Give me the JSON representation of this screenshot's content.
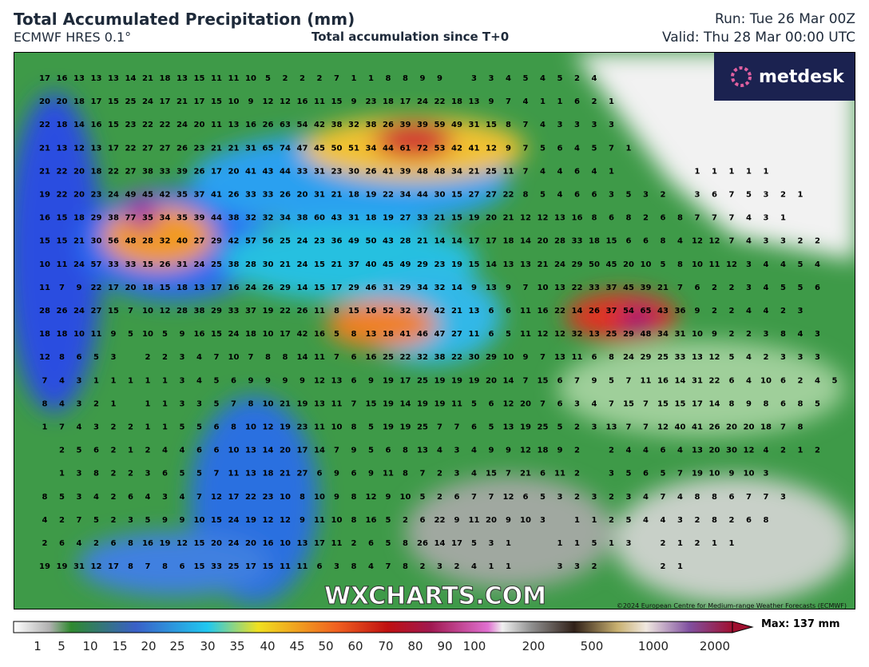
{
  "header": {
    "title": "Total Accumulated Precipitation (mm)",
    "model": "ECMWF HRES 0.1°",
    "subtitle": "Total accumulation since T+0",
    "run": "Run: Tue 26 Mar 00Z",
    "valid": "Valid: Thu 28 Mar 00:00 UTC"
  },
  "logo": "metdesk",
  "watermark": "WXCHARTS.COM",
  "copyright": "©2024 European Centre for Medium-range Weather Forecasts (ECMWF)",
  "grid": [
    [
      17,
      16,
      13,
      13,
      13,
      14,
      21,
      18,
      13,
      15,
      11,
      11,
      10,
      5,
      2,
      2,
      2,
      7,
      1,
      1,
      8,
      8,
      9,
      9,
      null,
      3,
      3,
      4,
      5,
      4,
      5,
      2,
      4
    ],
    [
      20,
      20,
      18,
      17,
      15,
      25,
      24,
      17,
      21,
      17,
      15,
      10,
      9,
      12,
      12,
      16,
      11,
      15,
      9,
      23,
      18,
      17,
      24,
      22,
      18,
      13,
      9,
      7,
      4,
      1,
      1,
      6,
      2,
      1
    ],
    [
      22,
      18,
      14,
      16,
      15,
      23,
      22,
      22,
      24,
      20,
      11,
      13,
      16,
      26,
      63,
      54,
      42,
      38,
      32,
      38,
      26,
      39,
      39,
      59,
      49,
      31,
      15,
      8,
      7,
      4,
      3,
      3,
      3,
      3
    ],
    [
      21,
      13,
      12,
      13,
      17,
      22,
      27,
      27,
      26,
      23,
      21,
      21,
      31,
      65,
      74,
      47,
      45,
      50,
      51,
      34,
      44,
      61,
      72,
      53,
      42,
      41,
      12,
      9,
      7,
      5,
      6,
      4,
      5,
      7,
      1
    ],
    [
      21,
      22,
      20,
      18,
      22,
      27,
      38,
      33,
      39,
      26,
      17,
      20,
      41,
      43,
      44,
      33,
      31,
      23,
      30,
      26,
      41,
      39,
      48,
      48,
      34,
      21,
      25,
      11,
      7,
      4,
      4,
      6,
      4,
      1,
      null,
      null,
      null,
      null,
      1,
      1,
      1,
      1,
      1
    ],
    [
      19,
      22,
      20,
      23,
      24,
      49,
      45,
      42,
      35,
      37,
      41,
      26,
      33,
      33,
      26,
      20,
      31,
      21,
      18,
      19,
      22,
      34,
      44,
      30,
      15,
      27,
      27,
      22,
      8,
      5,
      4,
      6,
      6,
      3,
      5,
      3,
      2,
      null,
      3,
      6,
      7,
      5,
      3,
      2,
      1
    ],
    [
      16,
      15,
      18,
      29,
      38,
      77,
      35,
      34,
      35,
      39,
      44,
      38,
      32,
      32,
      34,
      38,
      60,
      43,
      31,
      18,
      19,
      27,
      33,
      21,
      15,
      19,
      20,
      21,
      12,
      12,
      13,
      16,
      8,
      6,
      8,
      2,
      6,
      8,
      7,
      7,
      7,
      4,
      3,
      1
    ],
    [
      15,
      15,
      21,
      30,
      56,
      48,
      28,
      32,
      40,
      27,
      29,
      42,
      57,
      56,
      25,
      24,
      23,
      36,
      49,
      50,
      43,
      28,
      21,
      14,
      14,
      17,
      17,
      18,
      14,
      20,
      28,
      33,
      18,
      15,
      6,
      6,
      8,
      4,
      12,
      12,
      7,
      4,
      3,
      3,
      2,
      2
    ],
    [
      10,
      11,
      24,
      57,
      33,
      33,
      15,
      26,
      31,
      24,
      25,
      38,
      28,
      30,
      21,
      24,
      15,
      21,
      37,
      40,
      45,
      49,
      29,
      23,
      19,
      15,
      14,
      13,
      13,
      21,
      24,
      29,
      50,
      45,
      20,
      10,
      5,
      8,
      10,
      11,
      12,
      3,
      4,
      4,
      5,
      4
    ],
    [
      11,
      7,
      9,
      22,
      17,
      20,
      18,
      15,
      18,
      13,
      17,
      16,
      24,
      26,
      29,
      14,
      15,
      17,
      29,
      46,
      31,
      29,
      34,
      32,
      14,
      9,
      13,
      9,
      7,
      10,
      13,
      22,
      33,
      37,
      45,
      39,
      21,
      7,
      6,
      2,
      2,
      3,
      4,
      5,
      5,
      6
    ],
    [
      28,
      26,
      24,
      27,
      15,
      7,
      10,
      12,
      28,
      38,
      29,
      33,
      37,
      19,
      22,
      26,
      11,
      8,
      15,
      16,
      52,
      32,
      37,
      42,
      21,
      13,
      6,
      6,
      11,
      16,
      22,
      14,
      26,
      37,
      54,
      65,
      43,
      36,
      9,
      2,
      2,
      4,
      4,
      2,
      3
    ],
    [
      18,
      18,
      10,
      11,
      9,
      5,
      10,
      5,
      9,
      16,
      15,
      24,
      18,
      10,
      17,
      42,
      16,
      5,
      8,
      13,
      18,
      41,
      46,
      47,
      27,
      11,
      6,
      5,
      11,
      12,
      12,
      32,
      13,
      25,
      29,
      48,
      34,
      31,
      10,
      9,
      2,
      2,
      3,
      8,
      4,
      3
    ],
    [
      12,
      8,
      6,
      5,
      3,
      null,
      2,
      2,
      3,
      4,
      7,
      10,
      7,
      8,
      8,
      14,
      11,
      7,
      6,
      16,
      25,
      22,
      32,
      38,
      22,
      30,
      29,
      10,
      9,
      7,
      13,
      11,
      6,
      8,
      24,
      29,
      25,
      33,
      13,
      12,
      5,
      4,
      2,
      3,
      3,
      3
    ],
    [
      7,
      4,
      3,
      1,
      1,
      1,
      1,
      1,
      3,
      4,
      5,
      6,
      9,
      9,
      9,
      9,
      12,
      13,
      6,
      9,
      19,
      17,
      25,
      19,
      19,
      19,
      20,
      14,
      7,
      15,
      6,
      7,
      9,
      5,
      7,
      11,
      16,
      14,
      31,
      22,
      6,
      4,
      10,
      6,
      2,
      4,
      5
    ],
    [
      8,
      4,
      3,
      2,
      1,
      null,
      1,
      1,
      3,
      3,
      5,
      7,
      8,
      10,
      21,
      19,
      13,
      11,
      7,
      15,
      19,
      14,
      19,
      19,
      11,
      5,
      6,
      12,
      20,
      7,
      6,
      3,
      4,
      7,
      15,
      7,
      15,
      15,
      17,
      14,
      8,
      9,
      8,
      6,
      8,
      5
    ],
    [
      1,
      7,
      4,
      3,
      2,
      2,
      1,
      1,
      5,
      5,
      6,
      8,
      10,
      12,
      19,
      23,
      11,
      10,
      8,
      5,
      19,
      19,
      25,
      7,
      7,
      6,
      5,
      13,
      19,
      25,
      5,
      2,
      3,
      13,
      7,
      7,
      12,
      40,
      41,
      26,
      20,
      20,
      18,
      7,
      8
    ],
    [
      null,
      2,
      5,
      6,
      2,
      1,
      2,
      4,
      4,
      6,
      6,
      10,
      13,
      14,
      20,
      17,
      14,
      7,
      9,
      5,
      6,
      8,
      13,
      4,
      3,
      4,
      9,
      9,
      12,
      18,
      9,
      2,
      null,
      2,
      4,
      4,
      6,
      4,
      13,
      20,
      30,
      12,
      4,
      2,
      1,
      2
    ],
    [
      null,
      1,
      3,
      8,
      2,
      2,
      3,
      6,
      5,
      5,
      7,
      11,
      13,
      18,
      21,
      27,
      6,
      9,
      6,
      9,
      11,
      8,
      7,
      2,
      3,
      4,
      15,
      7,
      21,
      6,
      11,
      2,
      null,
      3,
      5,
      6,
      5,
      7,
      19,
      10,
      9,
      10,
      3
    ],
    [
      8,
      5,
      3,
      4,
      2,
      6,
      4,
      3,
      4,
      7,
      12,
      17,
      22,
      23,
      10,
      8,
      10,
      9,
      8,
      12,
      9,
      10,
      5,
      2,
      6,
      7,
      7,
      12,
      6,
      5,
      3,
      2,
      3,
      2,
      3,
      4,
      7,
      4,
      8,
      8,
      6,
      7,
      7,
      3
    ],
    [
      4,
      2,
      7,
      5,
      2,
      3,
      5,
      9,
      9,
      10,
      15,
      24,
      19,
      12,
      12,
      9,
      11,
      10,
      8,
      16,
      5,
      2,
      6,
      22,
      9,
      11,
      20,
      9,
      10,
      3,
      null,
      1,
      1,
      2,
      5,
      4,
      4,
      3,
      2,
      8,
      2,
      6,
      8
    ],
    [
      2,
      6,
      4,
      2,
      6,
      8,
      16,
      19,
      12,
      15,
      20,
      24,
      20,
      16,
      10,
      13,
      17,
      11,
      2,
      6,
      5,
      8,
      26,
      14,
      17,
      5,
      3,
      1,
      null,
      null,
      1,
      1,
      5,
      1,
      3,
      null,
      2,
      1,
      2,
      1,
      1
    ],
    [
      19,
      19,
      31,
      12,
      17,
      8,
      7,
      8,
      6,
      15,
      33,
      25,
      17,
      15,
      11,
      11,
      6,
      3,
      8,
      4,
      7,
      8,
      2,
      3,
      2,
      4,
      1,
      1,
      null,
      null,
      3,
      3,
      2,
      null,
      null,
      null,
      2,
      1
    ]
  ],
  "colorbar": {
    "ticks": [
      1,
      5,
      10,
      15,
      20,
      25,
      30,
      35,
      40,
      45,
      50,
      60,
      70,
      80,
      90,
      100,
      200,
      500,
      1000,
      2000
    ],
    "max_label": "Max: 137 mm"
  }
}
